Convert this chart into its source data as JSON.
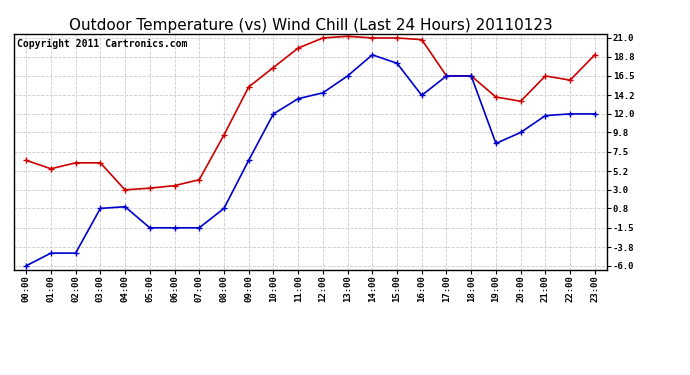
{
  "title": "Outdoor Temperature (vs) Wind Chill (Last 24 Hours) 20110123",
  "copyright": "Copyright 2011 Cartronics.com",
  "hours": [
    "00:00",
    "01:00",
    "02:00",
    "03:00",
    "04:00",
    "05:00",
    "06:00",
    "07:00",
    "08:00",
    "09:00",
    "10:00",
    "11:00",
    "12:00",
    "13:00",
    "14:00",
    "15:00",
    "16:00",
    "17:00",
    "18:00",
    "19:00",
    "20:00",
    "21:00",
    "22:00",
    "23:00"
  ],
  "temp": [
    6.5,
    5.5,
    6.2,
    6.2,
    3.0,
    3.2,
    3.5,
    4.2,
    9.5,
    15.2,
    17.5,
    19.8,
    21.0,
    21.2,
    21.0,
    21.0,
    20.8,
    16.5,
    16.5,
    14.0,
    13.5,
    16.5,
    16.0,
    19.0
  ],
  "wind_chill": [
    -6.0,
    -4.5,
    -4.5,
    0.8,
    1.0,
    -1.5,
    -1.5,
    -1.5,
    0.8,
    6.5,
    12.0,
    13.8,
    14.5,
    16.5,
    19.0,
    18.0,
    14.2,
    16.5,
    16.5,
    8.5,
    9.8,
    11.8,
    12.0,
    12.0
  ],
  "temp_color": "#cc0000",
  "wind_chill_color": "#0000cc",
  "yticks": [
    21.0,
    18.8,
    16.5,
    14.2,
    12.0,
    9.8,
    7.5,
    5.2,
    3.0,
    0.8,
    -1.5,
    -3.8,
    -6.0
  ],
  "ylim": [
    -6.5,
    21.5
  ],
  "bg_color": "#ffffff",
  "grid_color": "#cccccc",
  "title_fontsize": 11,
  "copyright_fontsize": 7,
  "marker": "+"
}
